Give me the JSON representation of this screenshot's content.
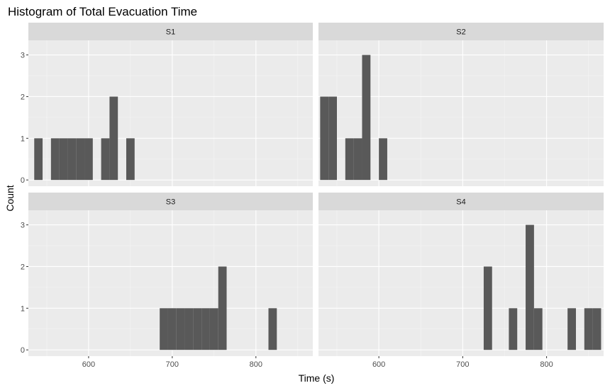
{
  "chart_data": {
    "type": "bar",
    "title": "Histogram of Total Evacuation Time",
    "xlabel": "Time (s)",
    "ylabel": "Count",
    "xlim": [
      528,
      868
    ],
    "ylim": [
      -0.15,
      3.35
    ],
    "x_ticks": [
      600,
      700,
      800
    ],
    "y_ticks": [
      0,
      1,
      2,
      3
    ],
    "bin_width": 10,
    "grid": true,
    "panels": [
      {
        "name": "S1",
        "bins": [
          {
            "x0": 535,
            "x1": 545,
            "count": 1
          },
          {
            "x0": 555,
            "x1": 565,
            "count": 1
          },
          {
            "x0": 565,
            "x1": 575,
            "count": 1
          },
          {
            "x0": 575,
            "x1": 585,
            "count": 1
          },
          {
            "x0": 585,
            "x1": 595,
            "count": 1
          },
          {
            "x0": 595,
            "x1": 605,
            "count": 1
          },
          {
            "x0": 615,
            "x1": 625,
            "count": 1
          },
          {
            "x0": 625,
            "x1": 635,
            "count": 2
          },
          {
            "x0": 645,
            "x1": 655,
            "count": 1
          }
        ]
      },
      {
        "name": "S2",
        "bins": [
          {
            "x0": 530,
            "x1": 540,
            "count": 2
          },
          {
            "x0": 540,
            "x1": 550,
            "count": 2
          },
          {
            "x0": 560,
            "x1": 570,
            "count": 1
          },
          {
            "x0": 570,
            "x1": 580,
            "count": 1
          },
          {
            "x0": 580,
            "x1": 590,
            "count": 3
          },
          {
            "x0": 600,
            "x1": 610,
            "count": 1
          }
        ]
      },
      {
        "name": "S3",
        "bins": [
          {
            "x0": 685,
            "x1": 695,
            "count": 1
          },
          {
            "x0": 695,
            "x1": 705,
            "count": 1
          },
          {
            "x0": 705,
            "x1": 715,
            "count": 1
          },
          {
            "x0": 715,
            "x1": 725,
            "count": 1
          },
          {
            "x0": 725,
            "x1": 735,
            "count": 1
          },
          {
            "x0": 735,
            "x1": 745,
            "count": 1
          },
          {
            "x0": 745,
            "x1": 755,
            "count": 1
          },
          {
            "x0": 755,
            "x1": 765,
            "count": 2
          },
          {
            "x0": 815,
            "x1": 825,
            "count": 1
          }
        ]
      },
      {
        "name": "S4",
        "bins": [
          {
            "x0": 725,
            "x1": 735,
            "count": 2
          },
          {
            "x0": 755,
            "x1": 765,
            "count": 1
          },
          {
            "x0": 775,
            "x1": 785,
            "count": 3
          },
          {
            "x0": 785,
            "x1": 795,
            "count": 1
          },
          {
            "x0": 825,
            "x1": 835,
            "count": 1
          },
          {
            "x0": 845,
            "x1": 855,
            "count": 1
          },
          {
            "x0": 855,
            "x1": 865,
            "count": 1
          }
        ]
      }
    ],
    "colors": {
      "bar": "#595959",
      "panel_background": "#ebebeb",
      "strip_background": "#d9d9d9",
      "grid_major": "#ffffff",
      "grid_minor": "#f5f5f5"
    }
  }
}
